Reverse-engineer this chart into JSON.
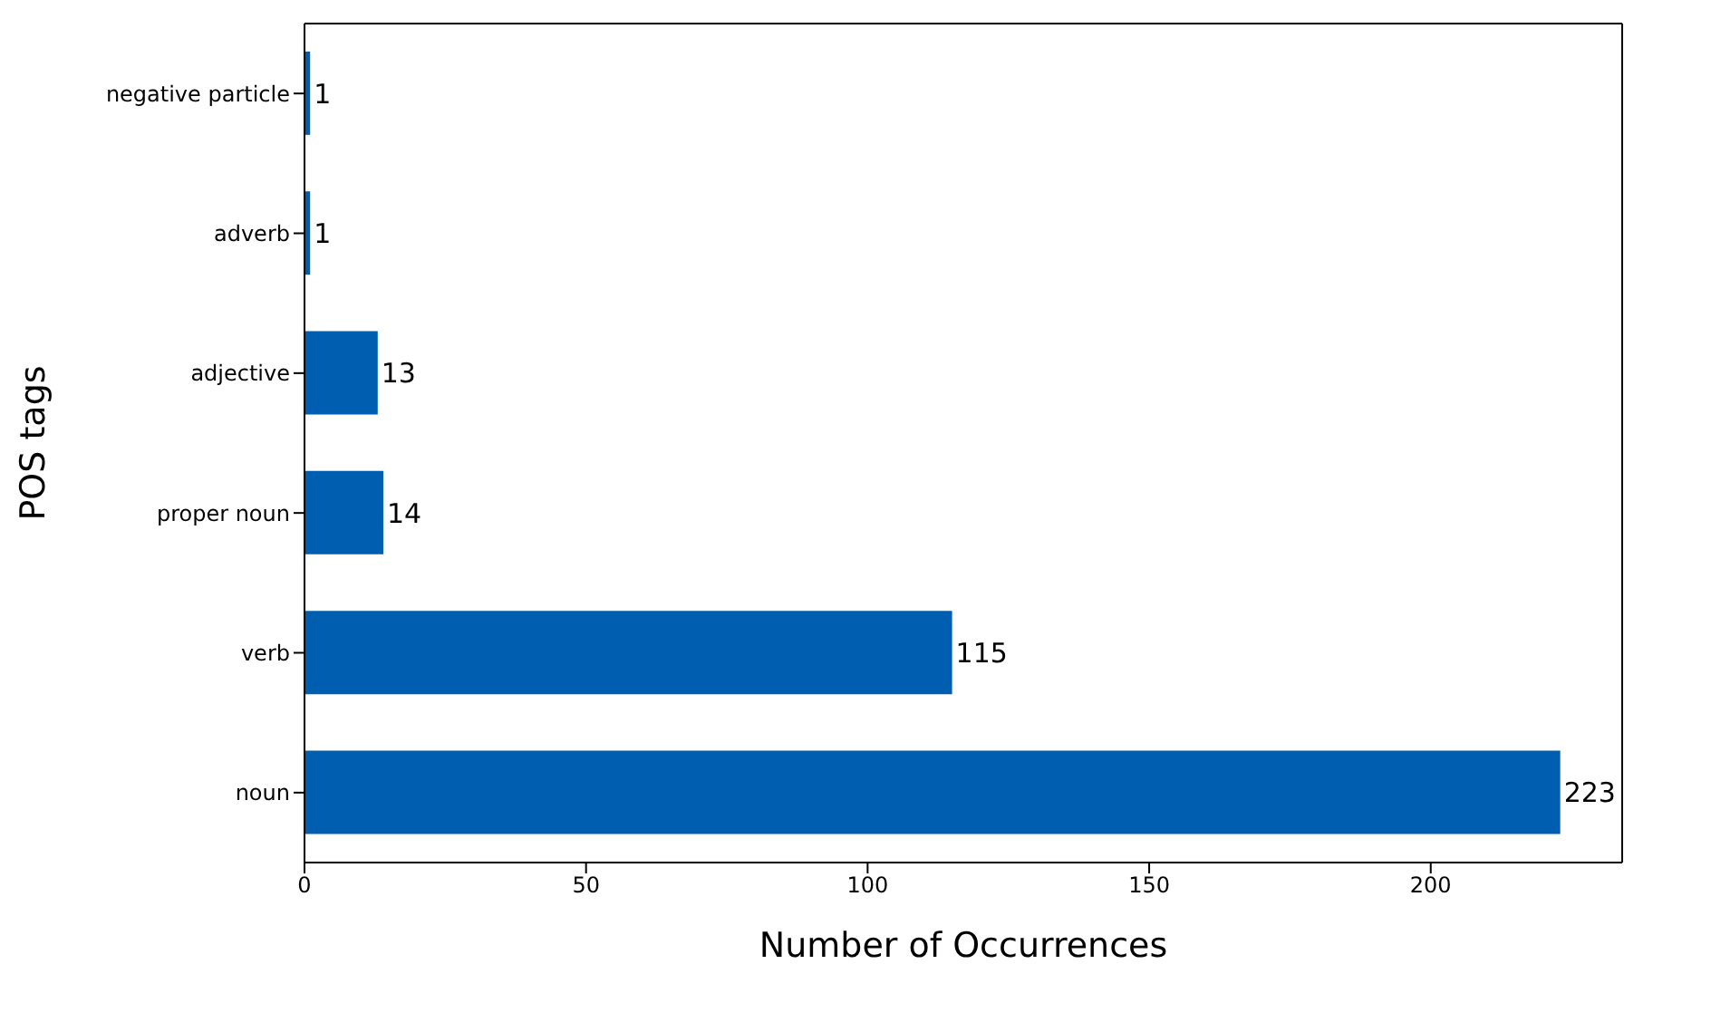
{
  "chart_data": {
    "type": "bar",
    "orientation": "horizontal",
    "xlabel": "Number of Occurrences",
    "ylabel": "POS tags",
    "categories": [
      "negative particle",
      "adverb",
      "adjective",
      "proper noun",
      "verb",
      "noun"
    ],
    "values": [
      1,
      1,
      13,
      14,
      115,
      223
    ],
    "color": "#005eb0",
    "xlim": [
      0,
      234
    ],
    "xticks": [
      0,
      50,
      100,
      150,
      200
    ],
    "data_labels": true,
    "grid": false
  }
}
